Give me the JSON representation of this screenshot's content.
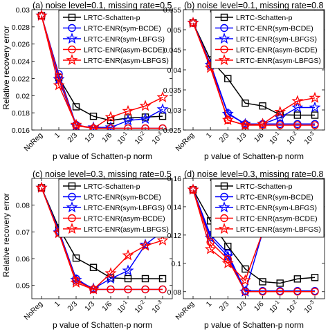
{
  "figure": {
    "ylabel": "Relative recovery error",
    "xlabel": "p value of Schatten-p norm"
  },
  "colors": {
    "schatten": "#000000",
    "blue": "#0000ff",
    "red": "#ff0000"
  },
  "chart_data": [
    {
      "type": "line",
      "title": "(a) noise level=0.1, missing rate=0.5",
      "xlabel": "p value of Schatten-p norm",
      "ylabel": "Relative recovery error",
      "categories": [
        "NoReg",
        "1",
        "2/3",
        "1/3",
        "1/6",
        "10^-1",
        "10^-2",
        "10^-3"
      ],
      "ylim": [
        0.016,
        0.03
      ],
      "yticks": [
        "0.016",
        "0.018",
        "0.02",
        "0.022",
        "0.024",
        "0.026",
        "0.028",
        "0.03"
      ],
      "legend": "top-right",
      "series": [
        {
          "name": "LRTC-Schatten-p",
          "values": [
            0.0293,
            0.0221,
            0.0187,
            0.0176,
            0.0171,
            0.0174,
            0.0175,
            0.0176
          ]
        },
        {
          "name": "LRTC-ENR(sym-BCDE)",
          "values": [
            0.0293,
            0.0225,
            0.0166,
            0.0162,
            0.0162,
            0.0162,
            0.0162,
            0.0162
          ]
        },
        {
          "name": "LRTC-ENR(sym-LBFGS)",
          "values": [
            0.0293,
            0.0219,
            0.0165,
            0.0163,
            0.0163,
            0.0171,
            0.0173,
            0.0184
          ]
        },
        {
          "name": "LRTC-ENR(asym-BCDE)",
          "values": [
            0.0293,
            0.0222,
            0.0165,
            0.0162,
            0.0162,
            0.0162,
            0.0162,
            0.0162
          ]
        },
        {
          "name": "LRTC-ENR(asym-LBFGS)",
          "values": [
            0.0293,
            0.0212,
            0.0166,
            0.0162,
            0.0175,
            0.0182,
            0.0188,
            0.0198
          ]
        }
      ]
    },
    {
      "type": "line",
      "title": "(b) noise level=0.1, missing rate=0.8",
      "xlabel": "p value of Schatten-p norm",
      "ylabel": "",
      "categories": [
        "NoReg",
        "1",
        "2/3",
        "1/3",
        "1/6",
        "10^-1",
        "10^-2",
        "10^-3"
      ],
      "ylim": [
        0.025,
        0.055
      ],
      "yticks": [
        "0.025",
        "0.03",
        "0.035",
        "0.04",
        "0.045",
        "0.05",
        "0.055"
      ],
      "legend": "top-right",
      "series": [
        {
          "name": "LRTC-Schatten-p",
          "values": [
            0.0517,
            0.0425,
            0.0378,
            0.0317,
            0.031,
            0.0288,
            0.0287,
            0.0287
          ]
        },
        {
          "name": "LRTC-ENR(sym-BCDE)",
          "values": [
            0.0517,
            0.0415,
            0.0292,
            0.0265,
            0.0265,
            0.0265,
            0.0265,
            0.0265
          ]
        },
        {
          "name": "LRTC-ENR(sym-LBFGS)",
          "values": [
            0.0517,
            0.0412,
            0.029,
            0.0265,
            0.0265,
            0.0281,
            0.0306,
            0.0306
          ]
        },
        {
          "name": "LRTC-ENR(asym-BCDE)",
          "values": [
            0.0517,
            0.041,
            0.0275,
            0.0262,
            0.0262,
            0.0262,
            0.0262,
            0.0262
          ]
        },
        {
          "name": "LRTC-ENR(asym-LBFGS)",
          "values": [
            0.0517,
            0.0405,
            0.0275,
            0.0262,
            0.0265,
            0.0295,
            0.0322,
            0.033
          ]
        }
      ]
    },
    {
      "type": "line",
      "title": "(c) noise level=0.3, missing rate=0.5",
      "xlabel": "p value of Schatten-p norm",
      "ylabel": "Relative recovery error",
      "categories": [
        "NoReg",
        "1",
        "2/3",
        "1/3",
        "1/6",
        "10^-1",
        "10^-2",
        "10^-3"
      ],
      "ylim": [
        0.045,
        0.09
      ],
      "yticks": [
        "0.05",
        "0.06",
        "0.07",
        "0.08"
      ],
      "legend": "top-right",
      "series": [
        {
          "name": "LRTC-Schatten-p",
          "values": [
            0.0865,
            0.0715,
            0.0602,
            0.0567,
            0.0528,
            0.0525,
            0.0525,
            0.0525
          ]
        },
        {
          "name": "LRTC-ENR(sym-BCDE)",
          "values": [
            0.0865,
            0.0705,
            0.0525,
            0.0485,
            0.0485,
            0.0485,
            0.0485,
            0.0485
          ]
        },
        {
          "name": "LRTC-ENR(sym-LBFGS)",
          "values": [
            0.0865,
            0.0698,
            0.052,
            0.0488,
            0.0525,
            0.0555,
            0.0652,
            0.0702
          ]
        },
        {
          "name": "LRTC-ENR(asym-BCDE)",
          "values": [
            0.0865,
            0.0698,
            0.0518,
            0.0485,
            0.0485,
            0.0485,
            0.0485,
            0.0485
          ]
        },
        {
          "name": "LRTC-ENR(asym-LBFGS)",
          "values": [
            0.0865,
            0.0695,
            0.051,
            0.0485,
            0.0545,
            0.0612,
            0.0648,
            0.0668
          ]
        }
      ]
    },
    {
      "type": "line",
      "title": "(d) noise level=0.3, missing rate=0.8",
      "xlabel": "p value of Schatten-p norm",
      "ylabel": "",
      "categories": [
        "NoReg",
        "1",
        "2/3",
        "1/3",
        "1/6",
        "10^-1",
        "10^-2",
        "10^-3"
      ],
      "ylim": [
        0.075,
        0.16
      ],
      "yticks": [
        "0.08",
        "0.1",
        "0.12",
        "0.14",
        "0.16"
      ],
      "legend": "top-right",
      "series": [
        {
          "name": "LRTC-Schatten-p",
          "values": [
            0.152,
            0.13,
            0.112,
            0.096,
            0.087,
            0.086,
            0.089,
            0.09
          ]
        },
        {
          "name": "LRTC-ENR(sym-BCDE)",
          "values": [
            0.152,
            0.12,
            0.107,
            0.0805,
            0.0805,
            0.0805,
            0.0805,
            0.0805
          ]
        },
        {
          "name": "LRTC-ENR(sym-LBFGS)",
          "values": [
            0.152,
            0.118,
            0.105,
            0.08,
            0.122,
            0.148,
            0.151,
            0.152
          ]
        },
        {
          "name": "LRTC-ENR(asym-BCDE)",
          "values": [
            0.152,
            0.115,
            0.103,
            0.08,
            0.08,
            0.08,
            0.08,
            0.08
          ]
        },
        {
          "name": "LRTC-ENR(asym-LBFGS)",
          "values": [
            0.152,
            0.11,
            0.1,
            0.088,
            0.122,
            0.131,
            0.134,
            0.135
          ]
        }
      ]
    }
  ]
}
